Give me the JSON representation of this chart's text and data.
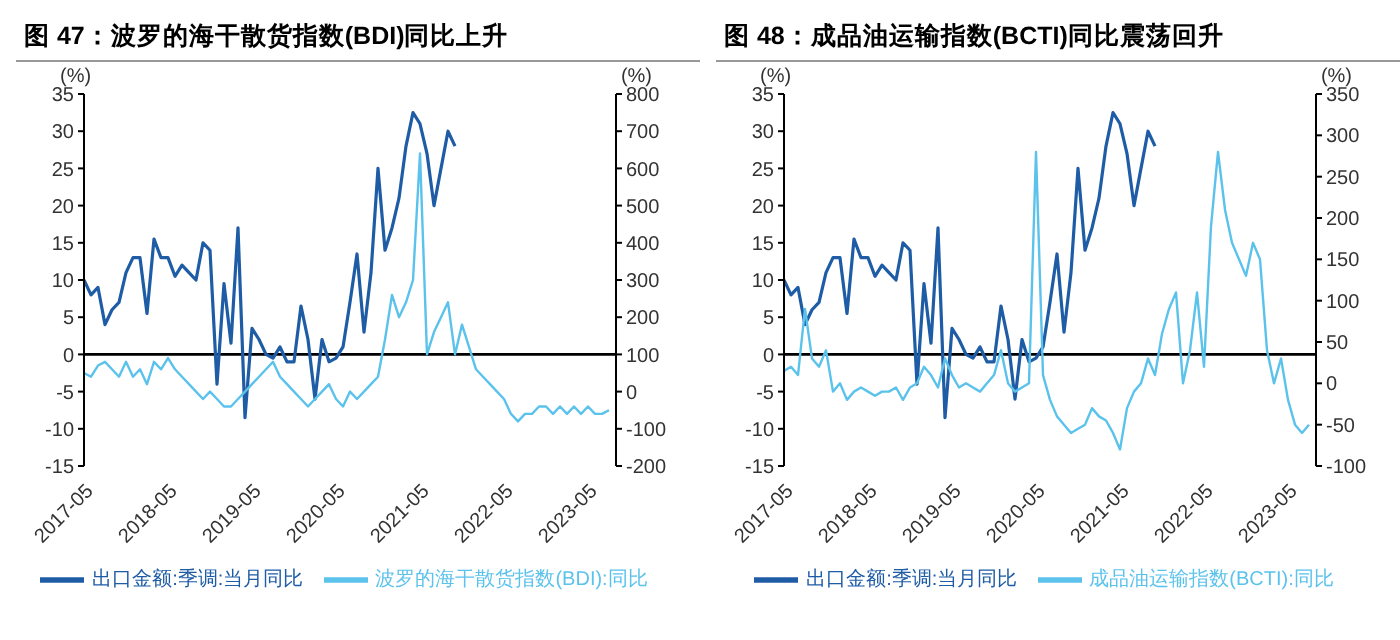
{
  "chart_data": [
    {
      "type": "line",
      "title": "图 47：波罗的海干散货指数(BDI)同比上升",
      "ylabel": "(%)",
      "y2label": "(%)",
      "legend": "bottom",
      "ylim": [
        -15,
        35
      ],
      "yticks": [
        -15,
        -10,
        -5,
        0,
        5,
        10,
        15,
        20,
        25,
        30,
        35
      ],
      "y2lim": [
        -200,
        800
      ],
      "y2ticks": [
        -200,
        -100,
        0,
        100,
        200,
        300,
        400,
        500,
        600,
        700,
        800
      ],
      "xlim": [
        "2017-05",
        "2023-09"
      ],
      "xticks": [
        "2017-05",
        "2018-05",
        "2019-05",
        "2020-05",
        "2021-05",
        "2022-05",
        "2023-05"
      ],
      "ref_lines": [
        {
          "axis": "y",
          "value": 0,
          "color": "#000000"
        }
      ],
      "series": [
        {
          "name": "出口金额:季调:当月同比",
          "color": "#1f5ca6",
          "x": [
            "2017-05",
            "2017-06",
            "2017-07",
            "2017-08",
            "2017-09",
            "2017-10",
            "2017-11",
            "2017-12",
            "2018-01",
            "2018-02",
            "2018-03",
            "2018-04",
            "2018-05",
            "2018-06",
            "2018-07",
            "2018-08",
            "2018-09",
            "2018-10",
            "2018-11",
            "2018-12",
            "2019-01",
            "2019-02",
            "2019-03",
            "2019-04",
            "2019-05",
            "2019-06",
            "2019-07",
            "2019-08",
            "2019-09",
            "2019-10",
            "2019-11",
            "2019-12",
            "2020-01",
            "2020-02",
            "2020-03",
            "2020-04",
            "2020-05",
            "2020-06",
            "2020-07",
            "2020-08",
            "2020-09",
            "2020-10",
            "2020-11",
            "2020-12",
            "2021-01",
            "2021-02",
            "2021-03",
            "2021-04",
            "2021-05",
            "2021-06",
            "2021-07",
            "2021-08",
            "2021-09",
            "2021-10"
          ],
          "values": [
            10,
            8,
            9,
            4,
            6,
            7,
            11,
            13,
            13,
            5.5,
            15.5,
            13,
            13,
            10.5,
            12,
            11,
            10,
            15,
            14,
            -4,
            9.5,
            1.5,
            17,
            -8.5,
            3.5,
            2,
            0,
            -0.5,
            1,
            -1,
            -1,
            6.5,
            2,
            -6,
            2,
            -1,
            -0.5,
            1,
            7,
            13.5,
            3,
            11,
            25,
            14,
            17,
            21,
            28,
            32.5,
            31,
            27,
            20,
            25,
            30,
            28
          ]
        },
        {
          "name": "波罗的海干散货指数(BDI):同比",
          "color": "#5bc2ec",
          "axis": "y2",
          "x": [
            "2017-05",
            "2017-06",
            "2017-07",
            "2017-08",
            "2017-09",
            "2017-10",
            "2017-11",
            "2017-12",
            "2018-01",
            "2018-02",
            "2018-03",
            "2018-04",
            "2018-05",
            "2018-06",
            "2018-07",
            "2018-08",
            "2018-09",
            "2018-10",
            "2018-11",
            "2018-12",
            "2019-01",
            "2019-02",
            "2019-03",
            "2019-04",
            "2019-05",
            "2019-06",
            "2019-07",
            "2019-08",
            "2019-09",
            "2019-10",
            "2019-11",
            "2019-12",
            "2020-01",
            "2020-02",
            "2020-03",
            "2020-04",
            "2020-05",
            "2020-06",
            "2020-07",
            "2020-08",
            "2020-09",
            "2020-10",
            "2020-11",
            "2020-12",
            "2021-01",
            "2021-02",
            "2021-03",
            "2021-04",
            "2021-05",
            "2021-06",
            "2021-07",
            "2021-08",
            "2021-09",
            "2021-10",
            "2021-11",
            "2021-12",
            "2022-01",
            "2022-02",
            "2022-03",
            "2022-04",
            "2022-05",
            "2022-06",
            "2022-07",
            "2022-08",
            "2022-09",
            "2022-10",
            "2022-11",
            "2022-12",
            "2023-01",
            "2023-02",
            "2023-03",
            "2023-04",
            "2023-05",
            "2023-06",
            "2023-07",
            "2023-08"
          ],
          "values": [
            50,
            40,
            70,
            80,
            60,
            40,
            80,
            40,
            60,
            20,
            80,
            60,
            90,
            60,
            40,
            20,
            0,
            -20,
            0,
            -20,
            -40,
            -40,
            -20,
            0,
            20,
            40,
            60,
            80,
            40,
            20,
            0,
            -20,
            -40,
            -20,
            0,
            20,
            -20,
            -40,
            0,
            -20,
            0,
            20,
            40,
            140,
            260,
            200,
            240,
            300,
            640,
            100,
            160,
            200,
            240,
            100,
            180,
            120,
            60,
            40,
            20,
            0,
            -20,
            -60,
            -80,
            -60,
            -60,
            -40,
            -40,
            -60,
            -40,
            -60,
            -40,
            -60,
            -40,
            -60,
            -60,
            -50
          ]
        }
      ]
    },
    {
      "type": "line",
      "title": "图 48：成品油运输指数(BCTI)同比震荡回升",
      "ylabel": "(%)",
      "y2label": "(%)",
      "legend": "bottom",
      "ylim": [
        -15,
        35
      ],
      "yticks": [
        -15,
        -10,
        -5,
        0,
        5,
        10,
        15,
        20,
        25,
        30,
        35
      ],
      "y2lim": [
        -100,
        350
      ],
      "y2ticks": [
        -100,
        -50,
        0,
        50,
        100,
        150,
        200,
        250,
        300,
        350
      ],
      "xlim": [
        "2017-05",
        "2023-09"
      ],
      "xticks": [
        "2017-05",
        "2018-05",
        "2019-05",
        "2020-05",
        "2021-05",
        "2022-05",
        "2023-05"
      ],
      "ref_lines": [
        {
          "axis": "y",
          "value": 0,
          "color": "#000000"
        }
      ],
      "series": [
        {
          "name": "出口金额:季调:当月同比",
          "color": "#1f5ca6",
          "x": [
            "2017-05",
            "2017-06",
            "2017-07",
            "2017-08",
            "2017-09",
            "2017-10",
            "2017-11",
            "2017-12",
            "2018-01",
            "2018-02",
            "2018-03",
            "2018-04",
            "2018-05",
            "2018-06",
            "2018-07",
            "2018-08",
            "2018-09",
            "2018-10",
            "2018-11",
            "2018-12",
            "2019-01",
            "2019-02",
            "2019-03",
            "2019-04",
            "2019-05",
            "2019-06",
            "2019-07",
            "2019-08",
            "2019-09",
            "2019-10",
            "2019-11",
            "2019-12",
            "2020-01",
            "2020-02",
            "2020-03",
            "2020-04",
            "2020-05",
            "2020-06",
            "2020-07",
            "2020-08",
            "2020-09",
            "2020-10",
            "2020-11",
            "2020-12",
            "2021-01",
            "2021-02",
            "2021-03",
            "2021-04",
            "2021-05",
            "2021-06",
            "2021-07",
            "2021-08",
            "2021-09",
            "2021-10"
          ],
          "values": [
            10,
            8,
            9,
            4,
            6,
            7,
            11,
            13,
            13,
            5.5,
            15.5,
            13,
            13,
            10.5,
            12,
            11,
            10,
            15,
            14,
            -4,
            9.5,
            1.5,
            17,
            -8.5,
            3.5,
            2,
            0,
            -0.5,
            1,
            -1,
            -1,
            6.5,
            2,
            -6,
            2,
            -1,
            -0.5,
            1,
            7,
            13.5,
            3,
            11,
            25,
            14,
            17,
            21,
            28,
            32.5,
            31,
            27,
            20,
            25,
            30,
            28
          ]
        },
        {
          "name": "成品油运输指数(BCTI):同比",
          "color": "#5bc2ec",
          "axis": "y2",
          "x": [
            "2017-05",
            "2017-06",
            "2017-07",
            "2017-08",
            "2017-09",
            "2017-10",
            "2017-11",
            "2017-12",
            "2018-01",
            "2018-02",
            "2018-03",
            "2018-04",
            "2018-05",
            "2018-06",
            "2018-07",
            "2018-08",
            "2018-09",
            "2018-10",
            "2018-11",
            "2018-12",
            "2019-01",
            "2019-02",
            "2019-03",
            "2019-04",
            "2019-05",
            "2019-06",
            "2019-07",
            "2019-08",
            "2019-09",
            "2019-10",
            "2019-11",
            "2019-12",
            "2020-01",
            "2020-02",
            "2020-03",
            "2020-04",
            "2020-05",
            "2020-06",
            "2020-07",
            "2020-08",
            "2020-09",
            "2020-10",
            "2020-11",
            "2020-12",
            "2021-01",
            "2021-02",
            "2021-03",
            "2021-04",
            "2021-05",
            "2021-06",
            "2021-07",
            "2021-08",
            "2021-09",
            "2021-10",
            "2021-11",
            "2021-12",
            "2022-01",
            "2022-02",
            "2022-03",
            "2022-04",
            "2022-05",
            "2022-06",
            "2022-07",
            "2022-08",
            "2022-09",
            "2022-10",
            "2022-11",
            "2022-12",
            "2023-01",
            "2023-02",
            "2023-03",
            "2023-04",
            "2023-05",
            "2023-06",
            "2023-07",
            "2023-08"
          ],
          "values": [
            15,
            20,
            10,
            90,
            30,
            20,
            40,
            -10,
            0,
            -20,
            -10,
            -5,
            -10,
            -15,
            -10,
            -10,
            -5,
            -20,
            -5,
            0,
            20,
            10,
            -5,
            30,
            10,
            -5,
            0,
            -5,
            -10,
            0,
            10,
            40,
            0,
            -10,
            -5,
            0,
            280,
            10,
            -20,
            -40,
            -50,
            -60,
            -55,
            -50,
            -30,
            -40,
            -45,
            -60,
            -80,
            -30,
            -10,
            0,
            30,
            10,
            60,
            90,
            110,
            0,
            40,
            110,
            20,
            190,
            280,
            210,
            170,
            150,
            130,
            170,
            150,
            40,
            0,
            30,
            -20,
            -50,
            -60,
            -50
          ]
        }
      ]
    }
  ]
}
